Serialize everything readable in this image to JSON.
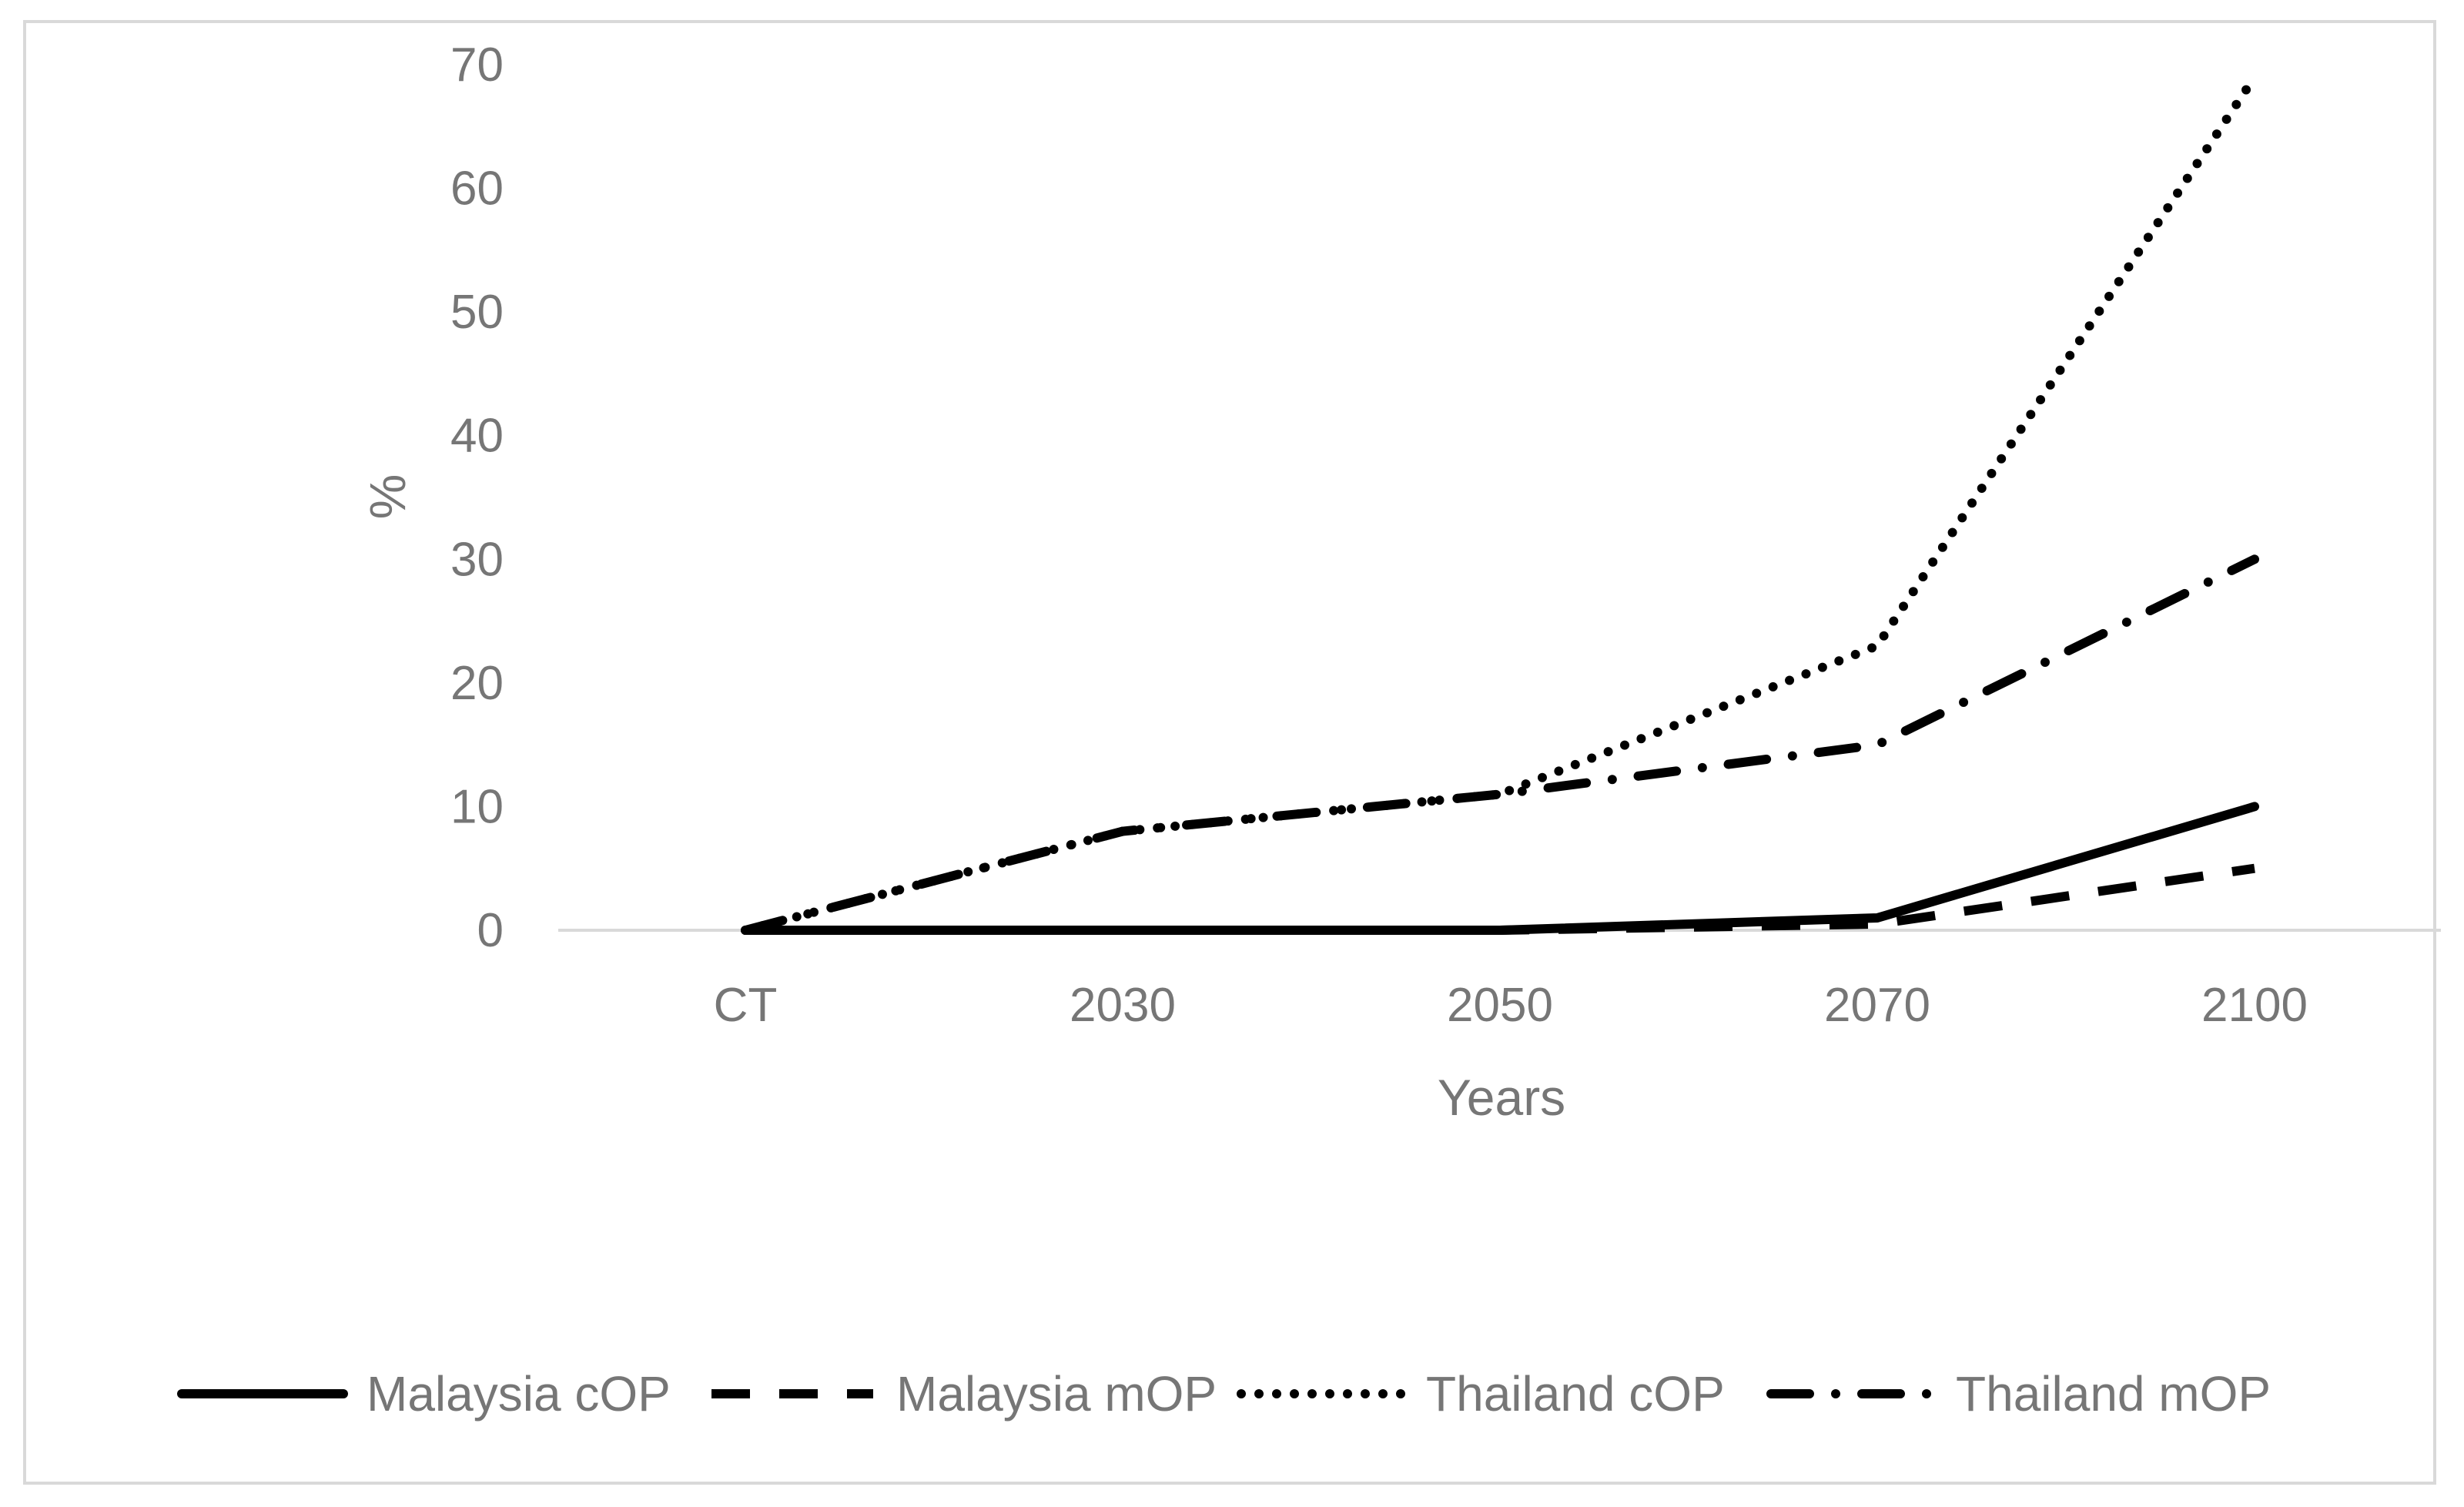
{
  "chart_data": {
    "type": "line",
    "title": "",
    "xlabel": "Years",
    "ylabel": "%",
    "categories": [
      "CT",
      "2030",
      "2050",
      "2070",
      "2100"
    ],
    "ylim": [
      0,
      70
    ],
    "yticks": [
      0,
      10,
      20,
      30,
      40,
      50,
      60,
      70
    ],
    "grid": false,
    "legend": "bottom",
    "series": [
      {
        "name": "Malaysia cOP",
        "style": "solid",
        "color": "#000000",
        "values": [
          0,
          0,
          0,
          1,
          10
        ]
      },
      {
        "name": "Malaysia mOP",
        "style": "dashed",
        "color": "#000000",
        "values": [
          0,
          0,
          0,
          0.5,
          5
        ]
      },
      {
        "name": "Thailand cOP",
        "style": "dotted",
        "color": "#000000",
        "values": [
          0,
          8,
          11,
          23,
          69
        ]
      },
      {
        "name": "Thailand mOP",
        "style": "dash-dot",
        "color": "#000000",
        "values": [
          0,
          8,
          11,
          15,
          30
        ]
      }
    ]
  }
}
